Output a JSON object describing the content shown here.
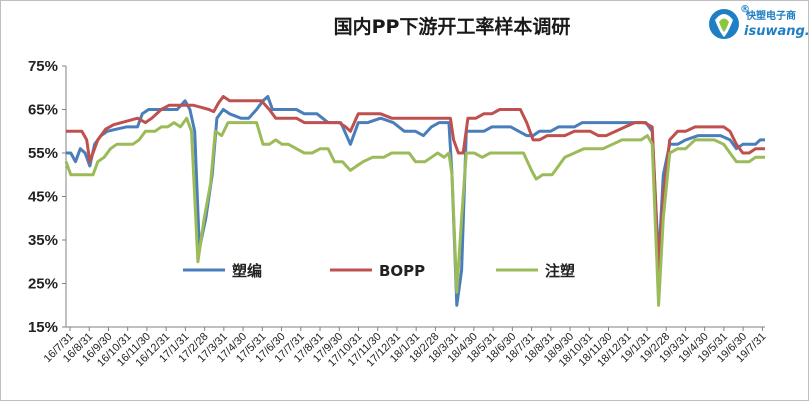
{
  "chart_data": {
    "type": "line",
    "title": "国内PP下游开工率样本调研",
    "ylim": [
      15,
      75
    ],
    "yticks": [
      "15%",
      "25%",
      "35%",
      "45%",
      "55%",
      "65%",
      "75%"
    ],
    "ytick_values": [
      15,
      25,
      35,
      45,
      55,
      65,
      75
    ],
    "grid": false,
    "legend_position": "lower-middle",
    "xticks": [
      "16/7/31",
      "16/8/31",
      "16/9/30",
      "16/10/31",
      "16/11/30",
      "16/12/31",
      "17/1/31",
      "17/2/28",
      "17/3/31",
      "17/4/30",
      "17/5/31",
      "17/6/30",
      "17/7/31",
      "17/8/31",
      "17/9/30",
      "17/10/31",
      "17/11/30",
      "17/12/31",
      "18/1/31",
      "18/2/28",
      "18/3/31",
      "18/4/30",
      "18/5/31",
      "18/6/30",
      "18/7/31",
      "18/8/31",
      "18/9/30",
      "18/10/31",
      "18/11/30",
      "18/12/31",
      "19/1/31",
      "19/2/28",
      "19/3/31",
      "19/4/30",
      "19/5/31",
      "19/6/30",
      "19/7/31"
    ],
    "x_range_months": [
      0,
      36
    ],
    "series": [
      {
        "name": "塑编",
        "color": "#4a7ebb",
        "points": [
          [
            0.0,
            55
          ],
          [
            0.3,
            55
          ],
          [
            0.6,
            53
          ],
          [
            0.9,
            56
          ],
          [
            1.2,
            55
          ],
          [
            1.5,
            52
          ],
          [
            1.8,
            57
          ],
          [
            2.2,
            59
          ],
          [
            2.6,
            60
          ],
          [
            3.2,
            60.5
          ],
          [
            3.8,
            61
          ],
          [
            4.5,
            61
          ],
          [
            4.8,
            64
          ],
          [
            5.2,
            65
          ],
          [
            6.0,
            65
          ],
          [
            6.5,
            65
          ],
          [
            7.0,
            65
          ],
          [
            7.5,
            67
          ],
          [
            7.8,
            65
          ],
          [
            8.1,
            60
          ],
          [
            8.4,
            33
          ],
          [
            8.8,
            40
          ],
          [
            9.2,
            50
          ],
          [
            9.5,
            63
          ],
          [
            9.9,
            65
          ],
          [
            10.3,
            64
          ],
          [
            11.0,
            63
          ],
          [
            11.5,
            63
          ],
          [
            12.0,
            65
          ],
          [
            12.4,
            67
          ],
          [
            12.7,
            68
          ],
          [
            13.0,
            65
          ],
          [
            14.0,
            65
          ],
          [
            14.5,
            65
          ],
          [
            15.0,
            64
          ],
          [
            15.8,
            64
          ],
          [
            16.5,
            62
          ],
          [
            17.3,
            62
          ],
          [
            17.9,
            57
          ],
          [
            18.4,
            62
          ],
          [
            19.0,
            62
          ],
          [
            19.8,
            63
          ],
          [
            20.6,
            62
          ],
          [
            21.3,
            60
          ],
          [
            22.0,
            60
          ],
          [
            22.5,
            59
          ],
          [
            23.0,
            61
          ],
          [
            23.5,
            62
          ],
          [
            24.1,
            62
          ],
          [
            24.3,
            50
          ],
          [
            24.6,
            20
          ],
          [
            24.9,
            28
          ],
          [
            25.2,
            60
          ],
          [
            25.7,
            60
          ],
          [
            26.3,
            60
          ],
          [
            26.8,
            61
          ],
          [
            27.5,
            61
          ],
          [
            28.0,
            61
          ],
          [
            28.5,
            60
          ],
          [
            29.0,
            59
          ],
          [
            29.4,
            59
          ],
          [
            29.8,
            60
          ],
          [
            30.5,
            60
          ],
          [
            31.0,
            61
          ],
          [
            31.6,
            61
          ],
          [
            32.0,
            61
          ],
          [
            32.5,
            62
          ],
          [
            33.0,
            62
          ],
          [
            33.6,
            62
          ],
          [
            34.2,
            62
          ],
          [
            34.8,
            62
          ],
          [
            35.5,
            62
          ],
          [
            36.0,
            62
          ],
          [
            36.5,
            62
          ],
          [
            36.9,
            60
          ],
          [
            37.3,
            30
          ],
          [
            37.6,
            50
          ],
          [
            38.0,
            57
          ],
          [
            38.5,
            57
          ],
          [
            39.0,
            58
          ],
          [
            39.8,
            59
          ],
          [
            40.5,
            59
          ],
          [
            41.2,
            59
          ],
          [
            41.8,
            58
          ],
          [
            42.2,
            56
          ],
          [
            42.6,
            57
          ],
          [
            43.0,
            57
          ],
          [
            43.4,
            57
          ],
          [
            43.7,
            58
          ],
          [
            44.0,
            58
          ]
        ]
      },
      {
        "name": "BOPP",
        "color": "#c0504d",
        "points": [
          [
            0.0,
            60
          ],
          [
            0.5,
            60
          ],
          [
            1.0,
            60
          ],
          [
            1.3,
            58
          ],
          [
            1.5,
            53
          ],
          [
            2.0,
            58
          ],
          [
            2.5,
            60.5
          ],
          [
            3.0,
            61.5
          ],
          [
            3.5,
            62
          ],
          [
            4.0,
            62.5
          ],
          [
            4.5,
            63
          ],
          [
            5.0,
            62
          ],
          [
            5.4,
            63
          ],
          [
            6.0,
            65
          ],
          [
            6.5,
            66
          ],
          [
            7.0,
            66
          ],
          [
            7.5,
            66
          ],
          [
            8.0,
            66
          ],
          [
            8.5,
            65.5
          ],
          [
            9.0,
            65
          ],
          [
            9.3,
            64.5
          ],
          [
            9.6,
            66.5
          ],
          [
            9.9,
            68
          ],
          [
            10.3,
            67
          ],
          [
            11.0,
            67
          ],
          [
            11.7,
            67
          ],
          [
            12.3,
            67
          ],
          [
            12.8,
            65
          ],
          [
            13.2,
            63
          ],
          [
            13.8,
            63
          ],
          [
            14.5,
            63
          ],
          [
            15.0,
            62
          ],
          [
            15.8,
            62
          ],
          [
            16.5,
            62
          ],
          [
            17.2,
            62
          ],
          [
            17.6,
            61
          ],
          [
            17.9,
            60
          ],
          [
            18.4,
            64
          ],
          [
            19.0,
            64
          ],
          [
            19.8,
            64
          ],
          [
            20.5,
            63
          ],
          [
            21.3,
            63
          ],
          [
            22.0,
            63
          ],
          [
            22.6,
            63
          ],
          [
            23.2,
            63
          ],
          [
            23.8,
            63
          ],
          [
            24.2,
            63
          ],
          [
            24.4,
            58
          ],
          [
            24.7,
            55
          ],
          [
            25.0,
            55
          ],
          [
            25.3,
            63
          ],
          [
            25.8,
            63
          ],
          [
            26.3,
            64
          ],
          [
            26.8,
            64
          ],
          [
            27.3,
            65
          ],
          [
            28.0,
            65
          ],
          [
            28.6,
            65
          ],
          [
            29.0,
            62
          ],
          [
            29.4,
            58
          ],
          [
            29.8,
            58
          ],
          [
            30.3,
            59
          ],
          [
            30.8,
            59
          ],
          [
            31.4,
            59
          ],
          [
            32.0,
            60
          ],
          [
            32.6,
            60
          ],
          [
            33.0,
            60
          ],
          [
            33.5,
            59
          ],
          [
            34.0,
            59
          ],
          [
            34.6,
            60
          ],
          [
            35.2,
            61
          ],
          [
            35.8,
            62
          ],
          [
            36.4,
            62
          ],
          [
            36.9,
            61
          ],
          [
            37.3,
            28
          ],
          [
            37.6,
            45
          ],
          [
            38.0,
            58
          ],
          [
            38.5,
            60
          ],
          [
            39.0,
            60
          ],
          [
            39.6,
            61
          ],
          [
            40.2,
            61
          ],
          [
            40.8,
            61
          ],
          [
            41.4,
            61
          ],
          [
            41.8,
            60
          ],
          [
            42.2,
            57
          ],
          [
            42.6,
            55
          ],
          [
            43.0,
            55
          ],
          [
            43.4,
            56
          ],
          [
            43.7,
            56
          ],
          [
            44.0,
            56
          ]
        ]
      },
      {
        "name": "注塑",
        "color": "#9bbb59",
        "points": [
          [
            0.0,
            53
          ],
          [
            0.3,
            50
          ],
          [
            0.8,
            50
          ],
          [
            1.4,
            50
          ],
          [
            1.7,
            50
          ],
          [
            2.0,
            53
          ],
          [
            2.4,
            54
          ],
          [
            2.8,
            56
          ],
          [
            3.2,
            57
          ],
          [
            3.8,
            57
          ],
          [
            4.2,
            57
          ],
          [
            4.6,
            58
          ],
          [
            5.0,
            60
          ],
          [
            5.6,
            60
          ],
          [
            6.0,
            61
          ],
          [
            6.4,
            61
          ],
          [
            6.8,
            62
          ],
          [
            7.2,
            61
          ],
          [
            7.6,
            63
          ],
          [
            7.9,
            60
          ],
          [
            8.3,
            30
          ],
          [
            8.7,
            40
          ],
          [
            9.1,
            48
          ],
          [
            9.4,
            60
          ],
          [
            9.8,
            59
          ],
          [
            10.2,
            62
          ],
          [
            10.8,
            62
          ],
          [
            11.5,
            62
          ],
          [
            12.0,
            62
          ],
          [
            12.4,
            57
          ],
          [
            12.8,
            57
          ],
          [
            13.2,
            58
          ],
          [
            13.6,
            57
          ],
          [
            14.0,
            57
          ],
          [
            14.5,
            56
          ],
          [
            15.0,
            55
          ],
          [
            15.5,
            55
          ],
          [
            16.0,
            56
          ],
          [
            16.5,
            56
          ],
          [
            16.9,
            53
          ],
          [
            17.4,
            53
          ],
          [
            17.9,
            51
          ],
          [
            18.3,
            52
          ],
          [
            18.7,
            53
          ],
          [
            19.3,
            54
          ],
          [
            20.0,
            54
          ],
          [
            20.5,
            55
          ],
          [
            21.0,
            55
          ],
          [
            21.6,
            55
          ],
          [
            22.0,
            53
          ],
          [
            22.6,
            53
          ],
          [
            23.0,
            54
          ],
          [
            23.4,
            55
          ],
          [
            23.8,
            54
          ],
          [
            24.1,
            55
          ],
          [
            24.3,
            50
          ],
          [
            24.6,
            23
          ],
          [
            24.9,
            40
          ],
          [
            25.2,
            55
          ],
          [
            25.7,
            55
          ],
          [
            26.2,
            54
          ],
          [
            26.7,
            55
          ],
          [
            27.2,
            55
          ],
          [
            27.8,
            55
          ],
          [
            28.3,
            55
          ],
          [
            28.8,
            55
          ],
          [
            29.3,
            51
          ],
          [
            29.6,
            49
          ],
          [
            30.0,
            50
          ],
          [
            30.6,
            50
          ],
          [
            31.0,
            52
          ],
          [
            31.4,
            54
          ],
          [
            32.0,
            55
          ],
          [
            32.6,
            56
          ],
          [
            33.2,
            56
          ],
          [
            33.8,
            56
          ],
          [
            34.4,
            57
          ],
          [
            35.0,
            58
          ],
          [
            35.6,
            58
          ],
          [
            36.2,
            58
          ],
          [
            36.6,
            59
          ],
          [
            36.9,
            57
          ],
          [
            37.3,
            20
          ],
          [
            37.6,
            40
          ],
          [
            38.0,
            55
          ],
          [
            38.5,
            56
          ],
          [
            39.0,
            56
          ],
          [
            39.6,
            58
          ],
          [
            40.2,
            58
          ],
          [
            40.8,
            58
          ],
          [
            41.4,
            57
          ],
          [
            41.8,
            55
          ],
          [
            42.2,
            53
          ],
          [
            42.6,
            53
          ],
          [
            43.0,
            53
          ],
          [
            43.4,
            54
          ],
          [
            43.7,
            54
          ],
          [
            44.0,
            54
          ]
        ]
      }
    ]
  },
  "logo": {
    "name_cn": "快塑电子商",
    "name_en": "isuwang.co",
    "mark": "®"
  }
}
